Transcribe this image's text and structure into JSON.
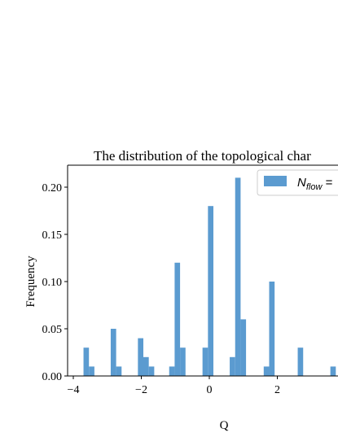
{
  "chart_data": {
    "type": "bar",
    "title": "The distribution of the topological char",
    "xlabel": "Q",
    "ylabel": "Frequency",
    "xlim": [
      -4.05,
      3.85
    ],
    "ylim": [
      0,
      0.22
    ],
    "xticks": [
      -4,
      -2,
      0,
      2
    ],
    "xtick_labels": [
      "−4",
      "−2",
      "0",
      "2"
    ],
    "yticks": [
      0.0,
      0.05,
      0.1,
      0.15,
      0.2
    ],
    "ytick_labels": [
      "0.00",
      "0.05",
      "0.10",
      "0.15",
      "0.20"
    ],
    "bin_width": 0.16,
    "bin_left_edges": [
      -3.7,
      -3.54,
      -2.9,
      -2.74,
      -2.1,
      -1.94,
      -1.78,
      -1.18,
      -1.02,
      -0.86,
      -0.2,
      -0.04,
      0.6,
      0.76,
      0.92,
      1.6,
      1.76,
      2.6,
      3.56
    ],
    "values": [
      0.03,
      0.01,
      0.05,
      0.01,
      0.04,
      0.02,
      0.01,
      0.01,
      0.12,
      0.03,
      0.03,
      0.18,
      0.02,
      0.21,
      0.06,
      0.01,
      0.1,
      0.03,
      0.01
    ],
    "legend_label": "N",
    "legend_subscript": "flow",
    "legend_suffix": " =",
    "legend_position": "top-right",
    "bar_color": "#5b9bd0",
    "grid": false
  }
}
